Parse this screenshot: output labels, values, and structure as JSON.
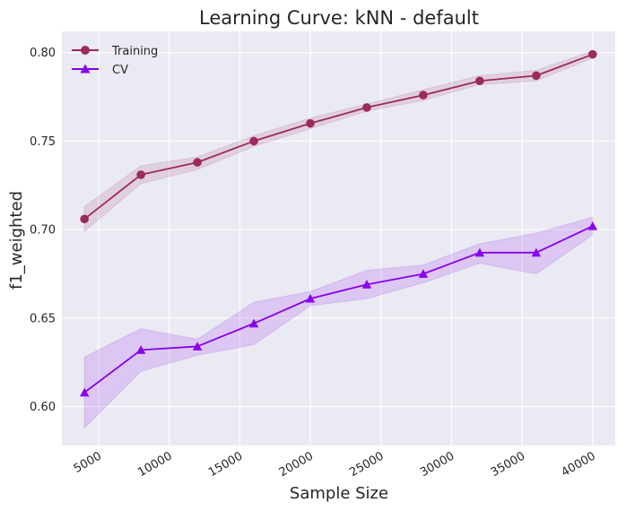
{
  "chart_data": {
    "type": "line",
    "title": "Learning Curve: kNN - default",
    "xlabel": "Sample Size",
    "ylabel": "f1_weighted",
    "xlim": [
      2400,
      41600
    ],
    "ylim": [
      0.578,
      0.812
    ],
    "xticks": [
      5000,
      10000,
      15000,
      20000,
      25000,
      30000,
      35000,
      40000
    ],
    "yticks": [
      0.6,
      0.65,
      0.7,
      0.75,
      0.8
    ],
    "ytick_labels": [
      "0.60",
      "0.65",
      "0.70",
      "0.75",
      "0.80"
    ],
    "xtick_rotation_deg": 30,
    "grid": true,
    "legend_position": "top-left",
    "background": "#eaeaf2",
    "x": [
      4000,
      8000,
      12000,
      16000,
      20000,
      24000,
      28000,
      32000,
      36000,
      40000
    ],
    "series": [
      {
        "name": "Training",
        "marker": "circle",
        "color": "#9b2a5e",
        "values": [
          0.706,
          0.731,
          0.738,
          0.75,
          0.76,
          0.769,
          0.776,
          0.784,
          0.787,
          0.799
        ],
        "band_lower": [
          0.699,
          0.726,
          0.734,
          0.747,
          0.757,
          0.767,
          0.773,
          0.782,
          0.784,
          0.797
        ],
        "band_upper": [
          0.713,
          0.736,
          0.741,
          0.753,
          0.763,
          0.771,
          0.779,
          0.787,
          0.79,
          0.801
        ]
      },
      {
        "name": "CV",
        "marker": "triangle",
        "color": "#8800ee",
        "values": [
          0.608,
          0.632,
          0.634,
          0.647,
          0.661,
          0.669,
          0.675,
          0.687,
          0.687,
          0.702
        ],
        "band_lower": [
          0.588,
          0.62,
          0.629,
          0.635,
          0.657,
          0.661,
          0.67,
          0.681,
          0.675,
          0.697
        ],
        "band_upper": [
          0.628,
          0.644,
          0.638,
          0.659,
          0.665,
          0.677,
          0.68,
          0.692,
          0.698,
          0.707
        ]
      }
    ]
  }
}
